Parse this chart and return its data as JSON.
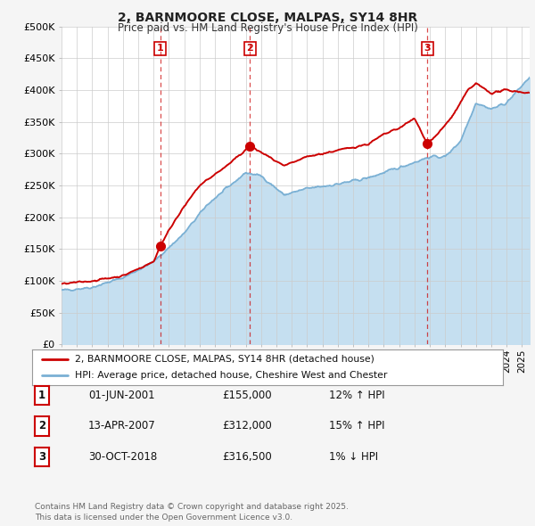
{
  "title_line1": "2, BARNMOORE CLOSE, MALPAS, SY14 8HR",
  "title_line2": "Price paid vs. HM Land Registry's House Price Index (HPI)",
  "ylim": [
    0,
    500000
  ],
  "yticks": [
    0,
    50000,
    100000,
    150000,
    200000,
    250000,
    300000,
    350000,
    400000,
    450000,
    500000
  ],
  "ytick_labels": [
    "£0",
    "£50K",
    "£100K",
    "£150K",
    "£200K",
    "£250K",
    "£300K",
    "£350K",
    "£400K",
    "£450K",
    "£500K"
  ],
  "background_color": "#f5f5f5",
  "plot_bg_color": "#ffffff",
  "grid_color": "#cccccc",
  "sale_color": "#cc0000",
  "hpi_color": "#7ab0d4",
  "hpi_fill_color": "#c5dff0",
  "vline_color": "#cc0000",
  "transactions": [
    {
      "date_num": 2001.42,
      "price": 155000,
      "label": "1"
    },
    {
      "date_num": 2007.28,
      "price": 312000,
      "label": "2"
    },
    {
      "date_num": 2018.83,
      "price": 316500,
      "label": "3"
    }
  ],
  "legend_sale_label": "2, BARNMOORE CLOSE, MALPAS, SY14 8HR (detached house)",
  "legend_hpi_label": "HPI: Average price, detached house, Cheshire West and Chester",
  "table_rows": [
    {
      "num": "1",
      "date": "01-JUN-2001",
      "price": "£155,000",
      "pct": "12%",
      "dir": "↑",
      "text": "HPI"
    },
    {
      "num": "2",
      "date": "13-APR-2007",
      "price": "£312,000",
      "pct": "15%",
      "dir": "↑",
      "text": "HPI"
    },
    {
      "num": "3",
      "date": "30-OCT-2018",
      "price": "£316,500",
      "pct": "1%",
      "dir": "↓",
      "text": "HPI"
    }
  ],
  "footer": "Contains HM Land Registry data © Crown copyright and database right 2025.\nThis data is licensed under the Open Government Licence v3.0.",
  "xmin": 1995,
  "xmax": 2025.5
}
